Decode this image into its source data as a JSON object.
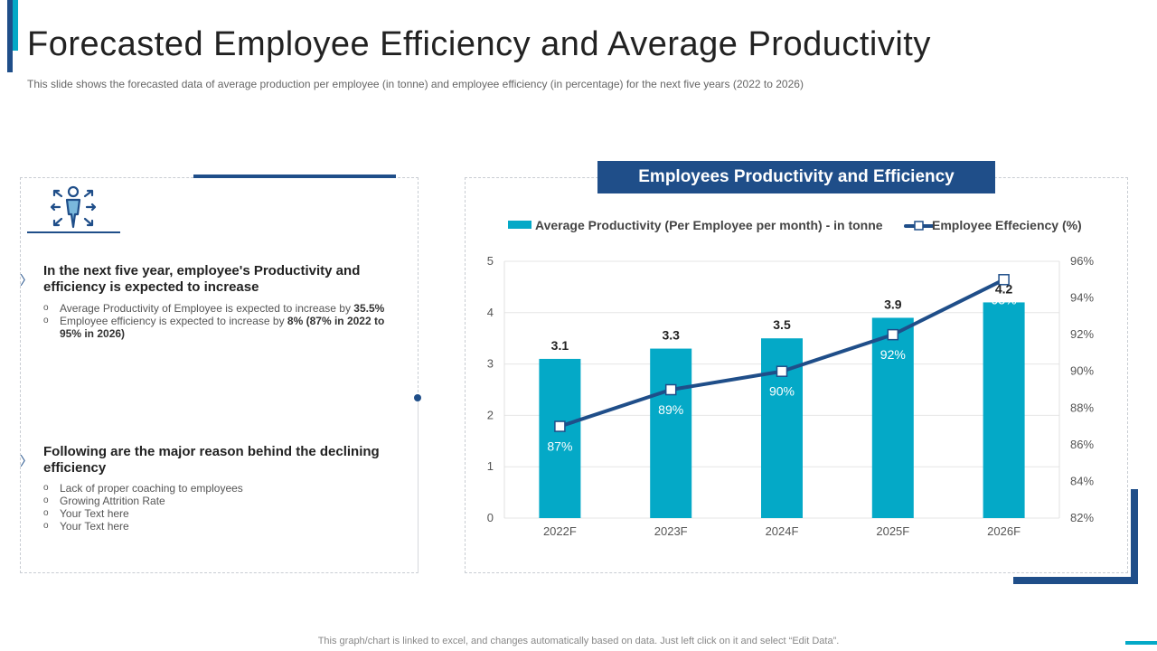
{
  "header": {
    "title": "Forecasted Employee Efficiency and Average Productivity",
    "subtitle": "This slide shows the forecasted data of average production per employee (in tonne) and employee efficiency (in percentage) for the next five years (2022 to 2026)"
  },
  "left": {
    "section1": {
      "title": "In the next five year, employee's Productivity and efficiency is expected to increase",
      "bullet1_text": "Average Productivity of Employee is expected to increase by ",
      "bullet1_bold": "35.5%",
      "bullet2_text": "Employee efficiency is expected to increase by ",
      "bullet2_bold": "8%  (87% in 2022 to 95% in 2026)"
    },
    "section2": {
      "title": "Following are the major reason behind the declining efficiency",
      "bullets": [
        "Lack of proper coaching to employees",
        "Growing Attrition Rate",
        "Your Text here",
        "Your Text here"
      ]
    }
  },
  "colors": {
    "dark_blue": "#1f4e89",
    "teal": "#04a9c7"
  },
  "chart_data": {
    "type": "bar",
    "title": "Employees Productivity and Efficiency",
    "categories": [
      "2022F",
      "2023F",
      "2024F",
      "2025F",
      "2026F"
    ],
    "series": [
      {
        "name": "Average Productivity (Per Employee per month) - in tonne",
        "type": "bar",
        "axis": "left",
        "values": [
          3.1,
          3.3,
          3.5,
          3.9,
          4.2
        ],
        "labels": [
          "3.1",
          "3.3",
          "3.5",
          "3.9",
          "4.2"
        ]
      },
      {
        "name": "Employee Effeciency (%)",
        "type": "line",
        "axis": "right",
        "values": [
          87,
          89,
          90,
          92,
          95
        ],
        "labels": [
          "87%",
          "89%",
          "90%",
          "92%",
          "95%"
        ]
      }
    ],
    "y_left": {
      "min": 0,
      "max": 5,
      "ticks": [
        "0",
        "1",
        "2",
        "3",
        "4",
        "5"
      ]
    },
    "y_right": {
      "min": 82,
      "max": 96,
      "ticks": [
        "82%",
        "84%",
        "86%",
        "88%",
        "90%",
        "92%",
        "94%",
        "96%"
      ]
    },
    "legend": "top"
  },
  "footer": {
    "note": "This graph/chart is linked to excel,  and changes automatically based on data. Just left click on it and select “Edit Data”."
  }
}
